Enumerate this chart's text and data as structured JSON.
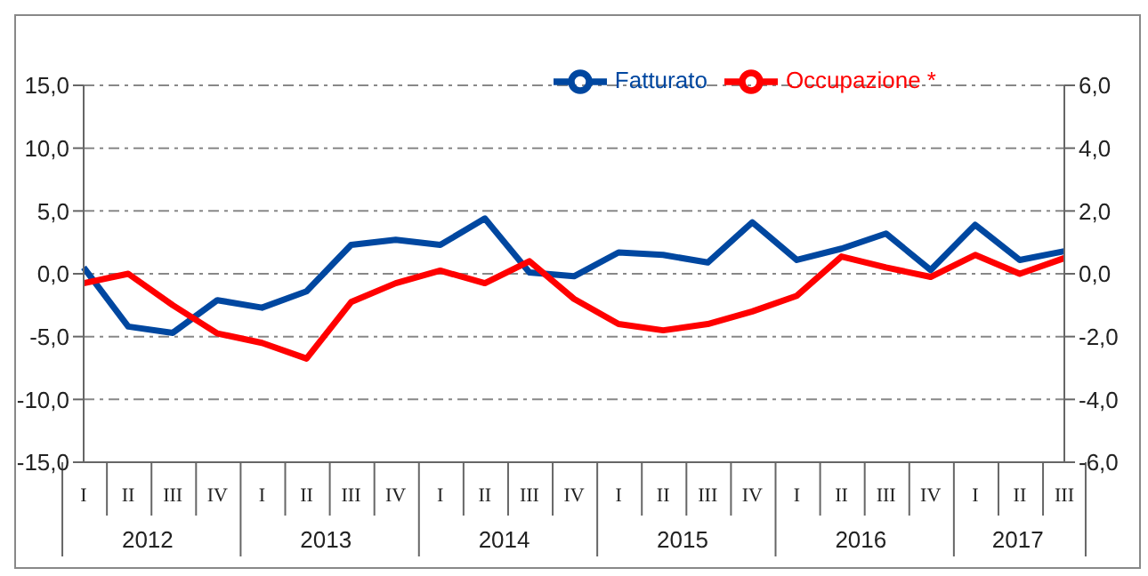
{
  "chart_data": {
    "type": "line",
    "categories": [
      "I",
      "II",
      "III",
      "IV",
      "I",
      "II",
      "III",
      "IV",
      "I",
      "II",
      "III",
      "IV",
      "I",
      "II",
      "III",
      "IV",
      "I",
      "II",
      "III",
      "IV",
      "I",
      "II",
      "III"
    ],
    "annotations": [
      "2012",
      "2013",
      "2014",
      "2015",
      "2016",
      "2017"
    ],
    "series": [
      {
        "name": "Fatturato",
        "color": "#0047a0",
        "values": [
          0.5,
          -4.2,
          -4.7,
          -2.1,
          -2.7,
          -1.4,
          2.3,
          2.7,
          2.3,
          4.4,
          0.1,
          -0.2,
          1.7,
          1.5,
          0.9,
          4.1,
          1.1,
          2.0,
          3.2,
          0.3,
          3.9,
          1.1,
          1.8
        ]
      },
      {
        "name": "Occupazione *",
        "color": "#ff0000",
        "axis": "y2",
        "values": [
          -0.3,
          0.0,
          -1.0,
          -1.9,
          -2.2,
          -2.7,
          -0.9,
          -0.3,
          0.1,
          -0.3,
          0.4,
          -0.8,
          -1.6,
          -1.8,
          -1.6,
          -1.2,
          -0.7,
          0.55,
          0.2,
          -0.1,
          0.6,
          0.0,
          0.5
        ]
      }
    ],
    "ylim": [
      -15,
      15
    ],
    "yticks": [
      {
        "value": -15,
        "label": "-15,0"
      },
      {
        "value": -10,
        "label": "-10,0"
      },
      {
        "value": -5,
        "label": "-5,0"
      },
      {
        "value": 0,
        "label": "0,0"
      },
      {
        "value": 5,
        "label": "5,0"
      },
      {
        "value": 10,
        "label": "10,0"
      },
      {
        "value": 15,
        "label": "15,0"
      }
    ],
    "y2lim": [
      -6,
      6
    ],
    "y2ticks": [
      {
        "value": -6,
        "label": "-6,0"
      },
      {
        "value": -4,
        "label": "-4,0"
      },
      {
        "value": -2,
        "label": "-2,0"
      },
      {
        "value": 0,
        "label": "0,0"
      },
      {
        "value": 2,
        "label": "2,0"
      },
      {
        "value": 4,
        "label": "4,0"
      },
      {
        "value": 6,
        "label": "6,0"
      }
    ],
    "grid": "y",
    "legend": "top",
    "marker": "none",
    "line_style": "solid"
  }
}
